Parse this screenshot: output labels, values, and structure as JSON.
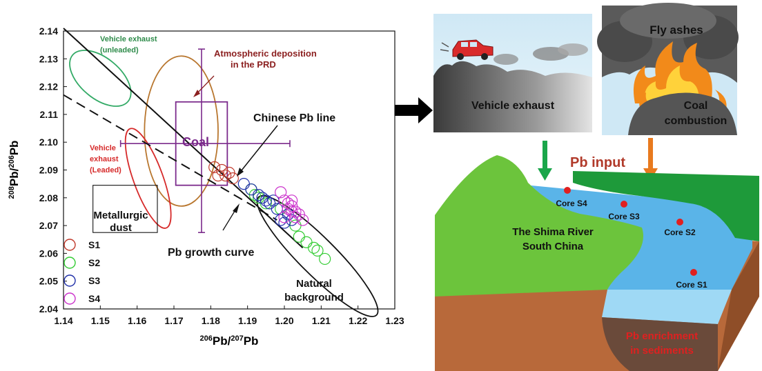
{
  "chart_data": {
    "type": "scatter",
    "xlabel_iso": "206",
    "xlabel_pb1": "Pb/",
    "xlabel_iso2": "207",
    "xlabel_pb2": "Pb",
    "ylabel_iso": "208",
    "ylabel_pb1": "Pb/",
    "ylabel_iso2": "206",
    "ylabel_pb2": "Pb",
    "xlim": [
      1.14,
      1.23
    ],
    "ylim": [
      2.04,
      2.14
    ],
    "x_ticks": [
      "1.14",
      "1.15",
      "1.16",
      "1.17",
      "1.18",
      "1.19",
      "1.20",
      "1.21",
      "1.22",
      "1.23"
    ],
    "y_ticks": [
      "2.04",
      "2.05",
      "2.06",
      "2.07",
      "2.08",
      "2.09",
      "2.10",
      "2.11",
      "2.12",
      "2.13",
      "2.14"
    ],
    "legend_placement": "bottom-left",
    "series": [
      {
        "name": "S1",
        "color": "#c0392b",
        "points": [
          [
            1.181,
            2.091
          ],
          [
            1.183,
            2.09
          ],
          [
            1.184,
            2.088
          ],
          [
            1.185,
            2.089
          ],
          [
            1.182,
            2.088
          ],
          [
            1.186,
            2.087
          ]
        ]
      },
      {
        "name": "S2",
        "color": "#33cc33",
        "points": [
          [
            1.191,
            2.083
          ],
          [
            1.193,
            2.08
          ],
          [
            1.195,
            2.078
          ],
          [
            1.199,
            2.076
          ],
          [
            1.201,
            2.074
          ],
          [
            1.203,
            2.07
          ],
          [
            1.206,
            2.064
          ],
          [
            1.208,
            2.062
          ],
          [
            1.209,
            2.061
          ],
          [
            1.211,
            2.058
          ],
          [
            1.204,
            2.066
          ],
          [
            1.192,
            2.081
          ]
        ]
      },
      {
        "name": "S3",
        "color": "#1f2fa8",
        "points": [
          [
            1.189,
            2.085
          ],
          [
            1.191,
            2.083
          ],
          [
            1.193,
            2.081
          ],
          [
            1.194,
            2.08
          ],
          [
            1.195,
            2.079
          ],
          [
            1.196,
            2.078
          ],
          [
            1.197,
            2.079
          ],
          [
            1.198,
            2.076
          ],
          [
            1.199,
            2.072
          ],
          [
            1.2,
            2.071
          ],
          [
            1.201,
            2.074
          ],
          [
            1.202,
            2.072
          ]
        ]
      },
      {
        "name": "S4",
        "color": "#cc33cc",
        "points": [
          [
            1.199,
            2.082
          ],
          [
            1.2,
            2.079
          ],
          [
            1.201,
            2.078
          ],
          [
            1.202,
            2.077
          ],
          [
            1.202,
            2.075
          ],
          [
            1.203,
            2.075
          ],
          [
            1.204,
            2.074
          ],
          [
            1.203,
            2.073
          ],
          [
            1.201,
            2.076
          ],
          [
            1.205,
            2.072
          ],
          [
            1.2,
            2.073
          ],
          [
            1.202,
            2.079
          ]
        ]
      }
    ],
    "lines": [
      {
        "name": "Chinese Pb line",
        "style": "solid",
        "from": [
          1.14,
          2.141
        ],
        "to": [
          1.205,
          2.062
        ]
      },
      {
        "name": "Pb growth curve",
        "style": "dashed",
        "from": [
          1.14,
          2.117
        ],
        "to": [
          1.198,
          2.072
        ]
      }
    ],
    "ellipses": [
      {
        "name": "Vehicle exhaust (unleaded)",
        "color": "#33aa66",
        "cx": 1.15,
        "cy": 2.123,
        "rx": 0.0055,
        "ry": 0.013,
        "rotate": -50
      },
      {
        "name": "Atmospheric deposition in the PRD",
        "color": "#b8762e",
        "cx": 1.172,
        "cy": 2.104,
        "rx": 0.01,
        "ry": 0.027,
        "rotate": 0
      },
      {
        "name": "Vehicle exhaust (Leaded)",
        "color": "#d62a2a",
        "cx": 1.163,
        "cy": 2.087,
        "rx": 0.004,
        "ry": 0.019,
        "rotate": -20
      },
      {
        "name": "Natural background",
        "color": "#111111",
        "cx": 1.209,
        "cy": 2.059,
        "rx": 0.005,
        "ry": 0.03,
        "rotate": -45
      }
    ],
    "boxes": [
      {
        "name": "Coal",
        "color": "#7b2a8b",
        "x0": 1.1705,
        "x1": 1.1845,
        "y0": 2.0845,
        "y1": 2.1145,
        "cross": {
          "cx": 1.1775,
          "cy": 2.0995,
          "hx0": 1.1555,
          "hx1": 1.2015,
          "vy0": 2.0675,
          "vy1": 2.1335
        }
      },
      {
        "name": "Metallurgic dust",
        "color": "#111111",
        "x0": 1.148,
        "x1": 1.1655,
        "y0": 2.0675,
        "y1": 2.0845
      }
    ],
    "annotations": {
      "vehicle_unleaded_l1": "Vehicle exhaust",
      "vehicle_unleaded_l2": "(unleaded)",
      "atmos_l1": "Atmospheric deposition",
      "atmos_l2": "in the PRD",
      "coal": "Coal",
      "chinese_pb_line": "Chinese Pb line",
      "vehicle_leaded_l1": "Vehicle",
      "vehicle_leaded_l2": "exhaust",
      "vehicle_leaded_l3": "(Leaded)",
      "metallurgic_l1": "Metallurgic",
      "metallurgic_l2": "dust",
      "pb_growth_curve": "Pb growth curve",
      "natural_l1": "Natural",
      "natural_l2": "background"
    }
  },
  "scene": {
    "vehicle_exhaust": "Vehicle exhaust",
    "fly_ashes": "Fly ashes",
    "coal_l1": "Coal",
    "coal_l2": "combustion",
    "pb_input": "Pb input",
    "river_l1": "The Shima River",
    "river_l2": "South China",
    "core_s4": "Core S4",
    "core_s3": "Core S3",
    "core_s2": "Core S2",
    "core_s1": "Core S1",
    "enrich_l1": "Pb enrichment",
    "enrich_l2": "in sediments",
    "colors": {
      "green_arrow": "#1aa64a",
      "orange_arrow": "#e87a1e",
      "pb_input": "#b13a2a",
      "land": "#6cc43c",
      "water": "#5ab4e8",
      "soil": "#b8693a",
      "enrich": "#e02020"
    }
  }
}
